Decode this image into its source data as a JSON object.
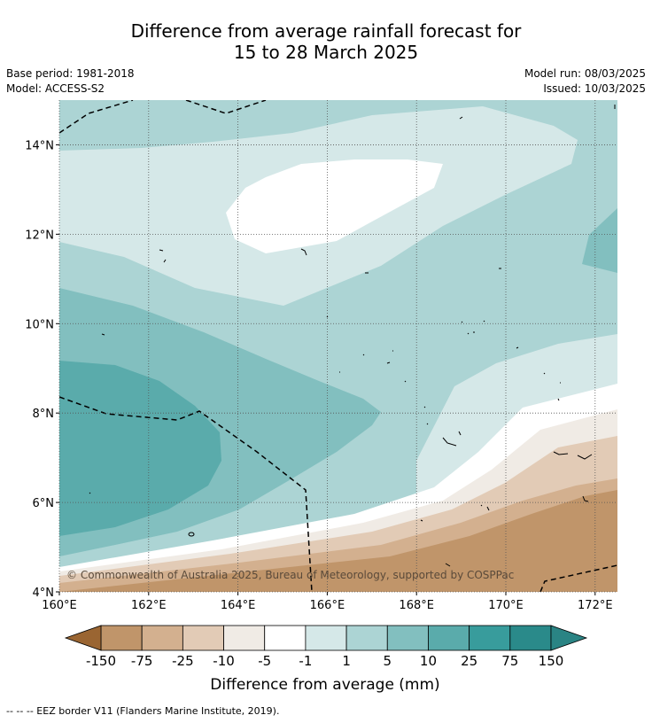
{
  "title": {
    "line1": "Difference from average rainfall forecast for",
    "line2": "15 to 28 March 2025"
  },
  "meta": {
    "base_period": "Base period: 1981-2018",
    "model": "Model: ACCESS-S2",
    "model_run": "Model run: 08/03/2025",
    "issued": "Issued: 10/03/2025"
  },
  "map": {
    "lon_range": [
      160,
      172.5
    ],
    "lat_range": [
      4,
      15
    ],
    "lon_ticks": [
      {
        "value": 160,
        "label": "160°E"
      },
      {
        "value": 162,
        "label": "162°E"
      },
      {
        "value": 164,
        "label": "164°E"
      },
      {
        "value": 166,
        "label": "166°E"
      },
      {
        "value": 168,
        "label": "168°E"
      },
      {
        "value": 170,
        "label": "170°E"
      },
      {
        "value": 172,
        "label": "172°E"
      }
    ],
    "lat_ticks": [
      {
        "value": 4,
        "label": "4°N"
      },
      {
        "value": 6,
        "label": "6°N"
      },
      {
        "value": 8,
        "label": "8°N"
      },
      {
        "value": 10,
        "label": "10°N"
      },
      {
        "value": 12,
        "label": "12°N"
      },
      {
        "value": 14,
        "label": "14°N"
      }
    ],
    "copyright": "© Commonwealth of Australia 2025, Bureau of Meteorology, supported by COSPPac"
  },
  "colorbar": {
    "ticks": [
      "-150",
      "-75",
      "-25",
      "-10",
      "-5",
      "-1",
      "1",
      "5",
      "10",
      "25",
      "75",
      "150"
    ],
    "colors": [
      "#a9733b",
      "#c0956a",
      "#d3b08f",
      "#e2cbb6",
      "#f0ebe5",
      "#ffffff",
      "#d5e8e8",
      "#acd4d4",
      "#82bfbf",
      "#5aabab",
      "#389c9c",
      "#2a8a8a"
    ],
    "extend_low_color": "#9a6532",
    "extend_high_color": "#2a8484",
    "label": "Difference from average (mm)"
  },
  "legend_note": "--  --  -- EEZ border V11 (Flanders Marine Institute, 2019)."
}
